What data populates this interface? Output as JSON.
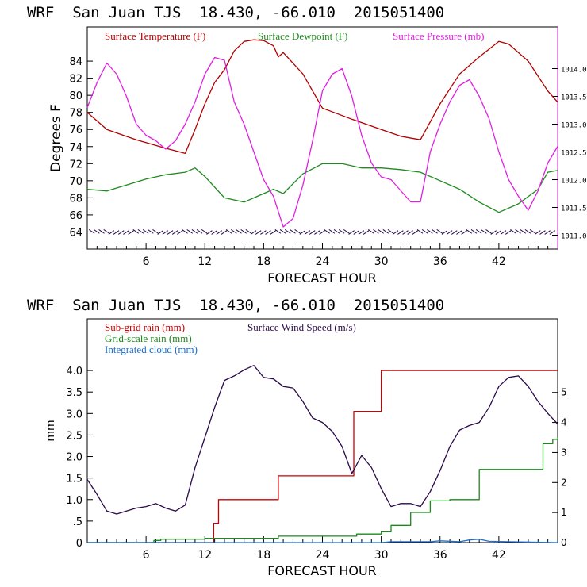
{
  "colors": {
    "temperature": "#b00000",
    "dewpoint": "#1f8a1f",
    "pressure": "#e020e0",
    "wind_speed": "#2a0a4a",
    "subgrid_rain": "#cc0000",
    "gridscale_rain": "#1a8a1a",
    "cloud": "#1a6fd0"
  },
  "chart_data": [
    {
      "type": "line",
      "title": "WRF  San Juan TJS  18.430, -66.010  2015051400",
      "xlabel": "FORECAST HOUR",
      "ylabel": "Degrees F",
      "xlim": [
        0,
        48
      ],
      "ylim": [
        62,
        88
      ],
      "y2lim": [
        1010.75,
        1014.75
      ],
      "xticks": [
        "6",
        "12",
        "18",
        "24",
        "30",
        "36",
        "42"
      ],
      "yticks": [
        "64",
        "66",
        "68",
        "70",
        "72",
        "74",
        "76",
        "78",
        "80",
        "82",
        "84"
      ],
      "y2ticks": [
        "1011.0",
        "1011.5",
        "1012.0",
        "1012.5",
        "1013.0",
        "1013.5",
        "1014.0"
      ],
      "series": [
        {
          "name": "Surface Temperature (F)",
          "axis": "left",
          "x": [
            0,
            2,
            5,
            8,
            10,
            11,
            12,
            13,
            14,
            15,
            16,
            17,
            18,
            19,
            19.5,
            20,
            22,
            24,
            27,
            30,
            32,
            34,
            36,
            38,
            40,
            42,
            43,
            45,
            47,
            48
          ],
          "y": [
            78,
            76,
            74.8,
            73.8,
            73.2,
            76,
            79,
            81.5,
            83,
            85.2,
            86.3,
            86.5,
            86.4,
            85.8,
            84.5,
            85,
            82.5,
            78.5,
            77.2,
            76,
            75.2,
            74.8,
            79,
            82.5,
            84.5,
            86.3,
            86,
            84,
            80.5,
            79.2
          ]
        },
        {
          "name": "Surface Dewpoint (F)",
          "axis": "left",
          "x": [
            0,
            2,
            4,
            6,
            8,
            10,
            11,
            12,
            14,
            16,
            18,
            19,
            20,
            22,
            24,
            26,
            28,
            30,
            32,
            34,
            36,
            38,
            40,
            42,
            44,
            46,
            47,
            48
          ],
          "y": [
            69,
            68.8,
            69.5,
            70.2,
            70.7,
            71,
            71.5,
            70.5,
            68,
            67.5,
            68.5,
            69,
            68.5,
            70.8,
            72,
            72,
            71.5,
            71.5,
            71.3,
            71,
            70,
            69,
            67.5,
            66.3,
            67.3,
            69,
            71,
            71.2
          ]
        },
        {
          "name": "Surface Pressure (mb)",
          "axis": "right",
          "x": [
            0,
            1,
            2,
            3,
            4,
            5,
            6,
            7,
            8,
            9,
            10,
            11,
            12,
            13,
            14,
            15,
            16,
            17,
            18,
            19,
            20,
            21,
            22,
            23,
            24,
            25,
            26,
            27,
            28,
            29,
            30,
            31,
            32,
            33,
            34,
            35,
            36,
            37,
            38,
            39,
            40,
            41,
            42,
            43,
            44,
            45,
            46,
            47,
            48
          ],
          "y": [
            1013.3,
            1013.75,
            1014.1,
            1013.9,
            1013.5,
            1013.0,
            1012.8,
            1012.7,
            1012.55,
            1012.7,
            1013.0,
            1013.4,
            1013.9,
            1014.2,
            1014.15,
            1013.4,
            1013.0,
            1012.5,
            1012.0,
            1011.7,
            1011.15,
            1011.3,
            1011.9,
            1012.7,
            1013.6,
            1013.9,
            1014.0,
            1013.5,
            1012.8,
            1012.3,
            1012.05,
            1012.0,
            1011.8,
            1011.6,
            1011.6,
            1012.5,
            1013.0,
            1013.4,
            1013.7,
            1013.8,
            1013.5,
            1013.1,
            1012.5,
            1012.0,
            1011.7,
            1011.45,
            1011.8,
            1012.3,
            1012.6
          ]
        }
      ],
      "legend": [
        "Surface Temperature (F)",
        "Surface Dewpoint (F)",
        "Surface Pressure (mb)"
      ],
      "legend_position": "top-left",
      "wind_barbs_y": 64
    },
    {
      "type": "line",
      "title": "WRF  San Juan TJS  18.430, -66.010  2015051400",
      "xlabel": "FORECAST HOUR",
      "ylabel": "mm",
      "xlim": [
        0,
        48
      ],
      "ylim": [
        0,
        5.2
      ],
      "y2lim": [
        0,
        7.45
      ],
      "xticks": [
        "6",
        "12",
        "18",
        "24",
        "30",
        "36",
        "42"
      ],
      "yticks": [
        "0",
        ".5",
        "1.0",
        "1.5",
        "2.0",
        "2.5",
        "3.0",
        "3.5",
        "4.0"
      ],
      "y2ticks": [
        "0",
        "1",
        "2",
        "3",
        "4",
        "5"
      ],
      "series": [
        {
          "name": "Sub-grid rain (mm)",
          "axis": "left",
          "step": true,
          "x": [
            0,
            12.2,
            12.9,
            13.4,
            19.5,
            27.2,
            30,
            48
          ],
          "y": [
            0,
            0,
            0.45,
            1.0,
            1.55,
            3.05,
            4.0,
            4.0
          ]
        },
        {
          "name": "Grid-scale rain (mm)",
          "axis": "left",
          "step": true,
          "x": [
            0,
            6.2,
            6.8,
            7.5,
            12,
            19.5,
            27.5,
            30,
            31,
            33,
            35,
            37,
            40,
            46.5,
            47.5,
            48
          ],
          "y": [
            0,
            0,
            0.05,
            0.08,
            0.1,
            0.15,
            0.2,
            0.25,
            0.4,
            0.7,
            0.97,
            1.0,
            1.7,
            2.3,
            2.4,
            2.45
          ]
        },
        {
          "name": "Integrated cloud (mm)",
          "axis": "left",
          "x": [
            0,
            10,
            12,
            30,
            31,
            35,
            36,
            38,
            39,
            40,
            41,
            48
          ],
          "y": [
            0,
            0,
            0,
            0,
            0.02,
            0.02,
            0.04,
            0.02,
            0.06,
            0.08,
            0.03,
            0
          ]
        },
        {
          "name": "Surface Wind Speed (m/s)",
          "axis": "right",
          "x": [
            0,
            1,
            2,
            3,
            4,
            5,
            6,
            7,
            8,
            9,
            10,
            11,
            12,
            13,
            14,
            15,
            16,
            17,
            18,
            19,
            20,
            21,
            22,
            23,
            24,
            25,
            26,
            27,
            28,
            29,
            30,
            31,
            32,
            33,
            34,
            35,
            36,
            37,
            38,
            39,
            40,
            41,
            42,
            43,
            44,
            45,
            46,
            47,
            48
          ],
          "y": [
            2.1,
            1.6,
            1.05,
            0.95,
            1.05,
            1.15,
            1.2,
            1.3,
            1.15,
            1.05,
            1.25,
            2.5,
            3.5,
            4.5,
            5.4,
            5.55,
            5.75,
            5.9,
            5.5,
            5.45,
            5.2,
            5.15,
            4.7,
            4.15,
            4.0,
            3.7,
            3.2,
            2.3,
            2.9,
            2.5,
            1.8,
            1.2,
            1.3,
            1.3,
            1.2,
            1.7,
            2.4,
            3.2,
            3.75,
            3.9,
            4.0,
            4.5,
            5.2,
            5.5,
            5.55,
            5.2,
            4.7,
            4.3,
            3.95
          ]
        }
      ],
      "legend": [
        "Sub-grid rain (mm)",
        "Surface Wind Speed (m/s)",
        "Grid-scale rain (mm)",
        "Integrated cloud (mm)"
      ],
      "legend_position": "top-left"
    }
  ]
}
